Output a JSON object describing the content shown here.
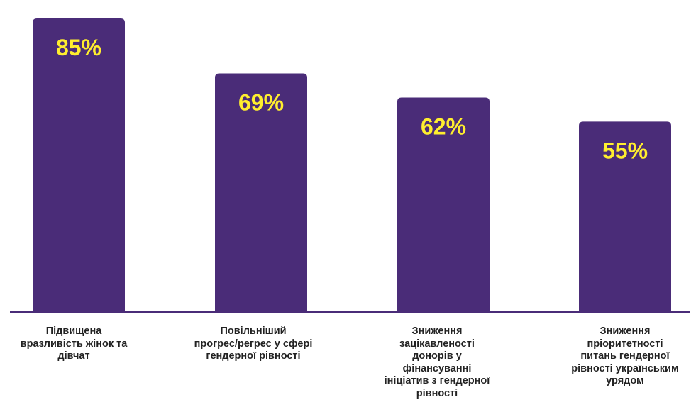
{
  "chart_data": {
    "type": "bar",
    "categories": [
      "Підвищена вразливість жінок та дівчат",
      "Повільніший прогрес/регрес у сфері гендерної рівності",
      "Зниження зацікавленості донорів у фінансуванні ініціатив з гендерної рівності",
      "Зниження пріоритетності питань гендерної рівності українським урядом"
    ],
    "category_lines": [
      [
        "Підвищена",
        "вразливість жінок та",
        "дівчат"
      ],
      [
        "Повільніший",
        "прогрес/регрес у сфері",
        "гендерної рівності"
      ],
      [
        "Зниження",
        "зацікавленості",
        "донорів у",
        "фінансуванні",
        "ініціатив з гендерної",
        "рівності"
      ],
      [
        "Зниження",
        "пріоритетності",
        "питань гендерної",
        "рівності українським",
        "урядом"
      ]
    ],
    "values": [
      85,
      69,
      62,
      55
    ],
    "data_labels": [
      "85%",
      "69%",
      "62%",
      "55%"
    ],
    "ylim": [
      0,
      100
    ],
    "grid": false,
    "legend": "none",
    "colors": {
      "bar": "#4a2c78",
      "axis": "#4a2c78",
      "data_label": "#ffee2e",
      "category_text": "#222222"
    }
  }
}
